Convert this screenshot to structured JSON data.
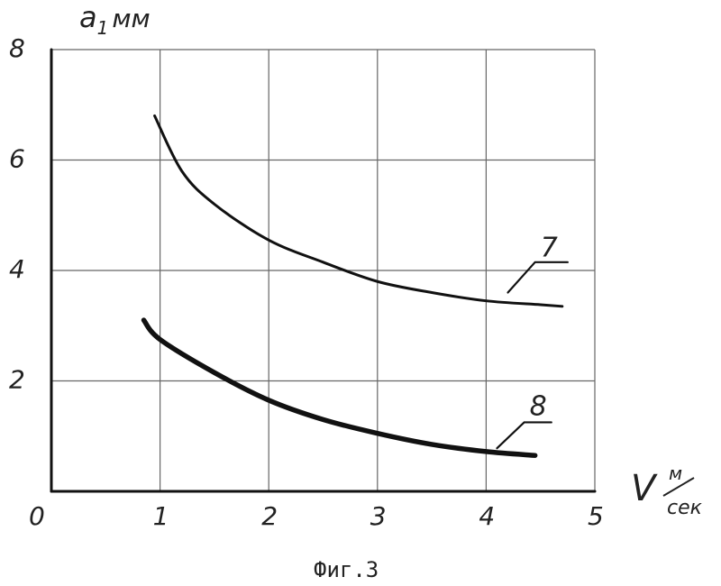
{
  "chart_data": {
    "type": "line",
    "title": "",
    "caption": "Фиг.3",
    "xlabel": {
      "main": "V",
      "unit_num": "м",
      "unit_den": "сек"
    },
    "ylabel": {
      "main": "a",
      "sub": "1",
      "unit": "мм"
    },
    "xlim": [
      0,
      5
    ],
    "ylim": [
      0,
      8
    ],
    "xticks": [
      "0",
      "1",
      "2",
      "3",
      "4",
      "5"
    ],
    "yticks": [
      "2",
      "4",
      "6",
      "8"
    ],
    "grid": true,
    "legend": "none",
    "series": [
      {
        "label": "7",
        "x": [
          0.95,
          1.2,
          1.5,
          2.0,
          2.5,
          3.0,
          3.5,
          4.0,
          4.5,
          4.7
        ],
        "y": [
          6.8,
          5.8,
          5.2,
          4.55,
          4.15,
          3.8,
          3.6,
          3.45,
          3.38,
          3.35
        ]
      },
      {
        "label": "8",
        "x": [
          0.85,
          1.0,
          1.5,
          2.0,
          2.5,
          3.0,
          3.5,
          4.0,
          4.45
        ],
        "y": [
          3.1,
          2.75,
          2.15,
          1.65,
          1.3,
          1.05,
          0.85,
          0.72,
          0.65
        ]
      }
    ]
  }
}
